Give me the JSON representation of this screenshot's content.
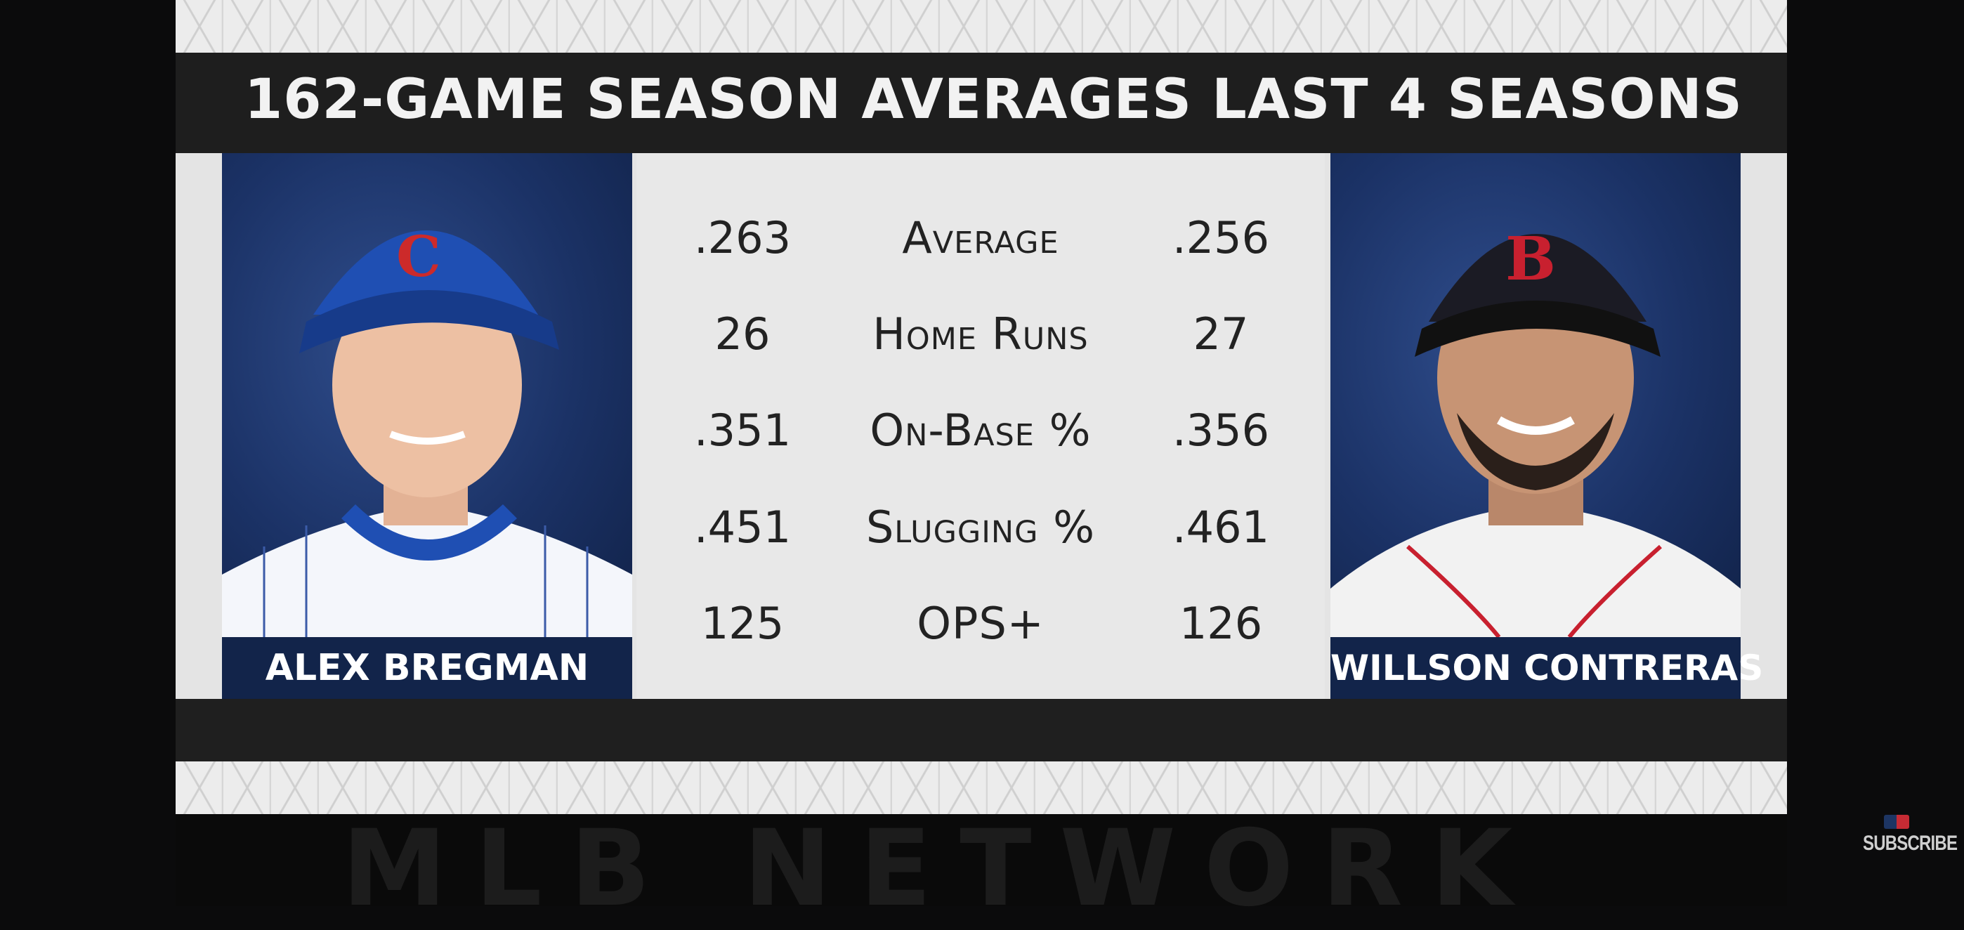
{
  "title": "162-Game Season Averages Last 4 Seasons",
  "players": {
    "left": {
      "name": "Alex Bregman",
      "cap_letter": "C",
      "cap_color": "#1f4fb3",
      "letter_color": "#cc2a2a"
    },
    "right": {
      "name": "Willson Contreras",
      "cap_letter": "B",
      "cap_color": "#1b1b24",
      "letter_color": "#c8202f"
    }
  },
  "stats": [
    {
      "label": "Average",
      "left": ".263",
      "right": ".256"
    },
    {
      "label": "Home Runs",
      "left": "26",
      "right": "27"
    },
    {
      "label": "On-Base %",
      "left": ".351",
      "right": ".356"
    },
    {
      "label": "Slugging %",
      "left": ".451",
      "right": ".461"
    },
    {
      "label": "OPS+",
      "left": "125",
      "right": "126"
    }
  ],
  "watermark": "MLB NETWORK",
  "subscribe_label": "SUBSCRIBE"
}
